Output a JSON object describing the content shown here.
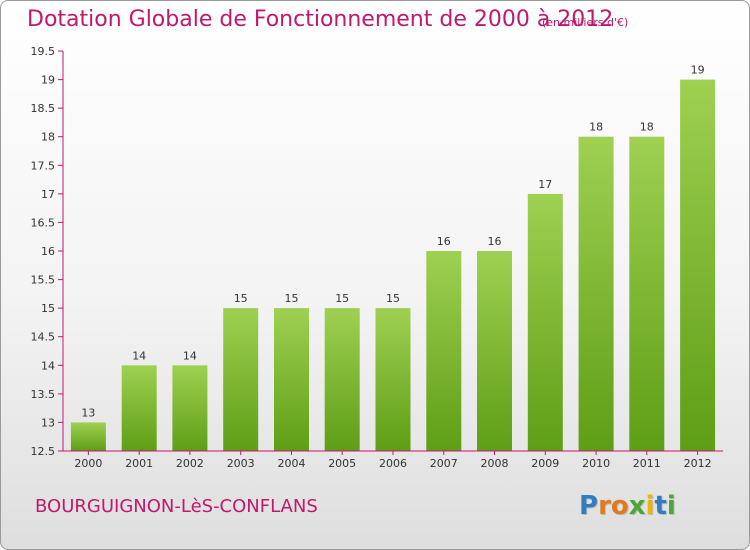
{
  "chart_data": {
    "type": "bar",
    "title": "Dotation Globale de Fonctionnement de 2000 à 2012",
    "unit_note": "(en milliers d'€)",
    "categories": [
      "2000",
      "2001",
      "2002",
      "2003",
      "2004",
      "2005",
      "2006",
      "2007",
      "2008",
      "2009",
      "2010",
      "2011",
      "2012"
    ],
    "values": [
      13,
      14,
      14,
      15,
      15,
      15,
      15,
      16,
      16,
      17,
      18,
      18,
      19
    ],
    "value_labels": [
      "13",
      "14",
      "14",
      "15",
      "15",
      "15",
      "15",
      "16",
      "16",
      "17",
      "18",
      "18",
      "19"
    ],
    "ylim": [
      12.5,
      19.5
    ],
    "yticks": [
      12.5,
      13,
      13.5,
      14,
      14.5,
      15,
      15.5,
      16,
      16.5,
      17,
      17.5,
      18,
      18.5,
      19,
      19.5
    ],
    "ytick_labels": [
      "12.5",
      "13",
      "13.5",
      "14",
      "14.5",
      "15",
      "15.5",
      "16",
      "16.5",
      "17",
      "17.5",
      "18",
      "18.5",
      "19",
      "19.5"
    ],
    "grid": false,
    "bar_color_top": "#9fd052",
    "bar_color_bottom": "#5e9e16",
    "axis_color": "#c0186b"
  },
  "footer": {
    "commune": "BOURGUIGNON-LèS-CONFLANS",
    "logo_letters": [
      "P",
      "r",
      "o",
      "x",
      "i",
      "t",
      "i"
    ],
    "logo_colors": [
      "#2f7fc0",
      "#e07a1c",
      "#e07a1c",
      "#4aa63a",
      "#f0b400",
      "#2f7fc0",
      "#4aa63a"
    ]
  }
}
